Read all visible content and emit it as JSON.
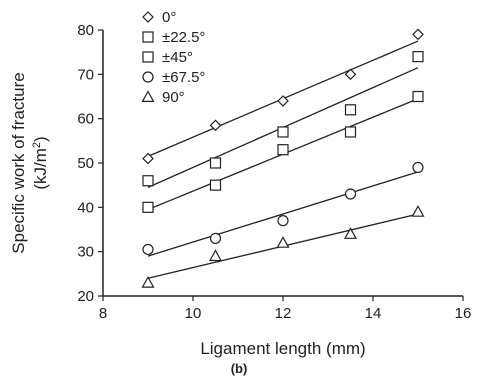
{
  "chart_data": {
    "type": "scatter",
    "panel_label": "(b)",
    "xlabel": "Ligament length (mm)",
    "ylabel_main": "Specific work of fracture",
    "ylabel_unit_prefix": "(kJ/m",
    "ylabel_unit_exp": "2",
    "ylabel_unit_suffix": ")",
    "xlim": [
      8,
      16
    ],
    "ylim": [
      20,
      80
    ],
    "xticks": [
      8,
      10,
      12,
      14,
      16
    ],
    "yticks": [
      20,
      30,
      40,
      50,
      60,
      70,
      80
    ],
    "grid": false,
    "legend_position": "top-left",
    "series": [
      {
        "name": "0°",
        "marker": "diamond",
        "x": [
          9,
          10.5,
          12,
          13.5,
          15
        ],
        "y": [
          51,
          58.5,
          64,
          70,
          79
        ],
        "fit": {
          "x": [
            9,
            15
          ],
          "y": [
            51.5,
            77.5
          ]
        }
      },
      {
        "name": "±22.5°",
        "marker": "square",
        "x": [
          9,
          10.5,
          12,
          13.5,
          15
        ],
        "y": [
          46,
          50,
          57,
          62,
          74
        ],
        "fit": {
          "x": [
            9,
            15
          ],
          "y": [
            44.5,
            71.5
          ]
        }
      },
      {
        "name": "±45°",
        "marker": "square",
        "x": [
          9,
          10.5,
          12,
          13.5,
          15
        ],
        "y": [
          40,
          45,
          53,
          57,
          65
        ],
        "fit": {
          "x": [
            9,
            15
          ],
          "y": [
            39.5,
            64.5
          ]
        }
      },
      {
        "name": "±67.5°",
        "marker": "circle",
        "x": [
          9,
          10.5,
          12,
          13.5,
          15
        ],
        "y": [
          30.5,
          33,
          37,
          43,
          49
        ],
        "fit": {
          "x": [
            9,
            15
          ],
          "y": [
            29,
            48
          ]
        }
      },
      {
        "name": "90°",
        "marker": "triangle",
        "x": [
          9,
          10.5,
          12,
          13.5,
          15
        ],
        "y": [
          23,
          29,
          32,
          34,
          39
        ],
        "fit": {
          "x": [
            9,
            15
          ],
          "y": [
            24,
            38.5
          ]
        }
      }
    ]
  }
}
